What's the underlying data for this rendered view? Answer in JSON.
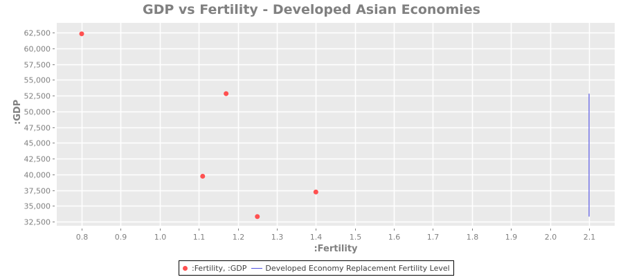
{
  "chart_data": {
    "type": "scatter",
    "title": "GDP vs Fertility - Developed Asian Economies",
    "xlabel": ":Fertility",
    "ylabel": ":GDP",
    "xlim": [
      0.74,
      2.17
    ],
    "ylim": [
      31800,
      64100
    ],
    "grid": true,
    "x_ticks": [
      "0.8",
      "0.9",
      "1.0",
      "1.1",
      "1.2",
      "1.3",
      "1.4",
      "1.5",
      "1.6",
      "1.7",
      "1.8",
      "1.9",
      "2.0",
      "2.1"
    ],
    "x_tick_values": [
      0.8,
      0.9,
      1.0,
      1.1,
      1.2,
      1.3,
      1.4,
      1.5,
      1.6,
      1.7,
      1.8,
      1.9,
      2.0,
      2.1
    ],
    "y_ticks": [
      "32,500",
      "35,000",
      "37,500",
      "40,000",
      "42,500",
      "45,000",
      "47,500",
      "50,000",
      "52,500",
      "55,000",
      "57,500",
      "60,000",
      "62,500"
    ],
    "y_tick_values": [
      32500,
      35000,
      37500,
      40000,
      42500,
      45000,
      47500,
      50000,
      52500,
      55000,
      57500,
      60000,
      62500
    ],
    "series": [
      {
        "name": ":Fertility, :GDP",
        "type": "scatter",
        "color": "#ff5050",
        "points": [
          {
            "x": 0.8,
            "y": 62300
          },
          {
            "x": 1.17,
            "y": 52800
          },
          {
            "x": 1.11,
            "y": 39700
          },
          {
            "x": 1.25,
            "y": 33300
          },
          {
            "x": 1.4,
            "y": 37200
          }
        ]
      },
      {
        "name": "Developed Economy Replacement Fertility Level",
        "type": "line",
        "color": "#5050e0",
        "points": [
          {
            "x": 2.1,
            "y": 33300
          },
          {
            "x": 2.1,
            "y": 52800
          }
        ]
      }
    ],
    "legend_position": "bottom"
  }
}
